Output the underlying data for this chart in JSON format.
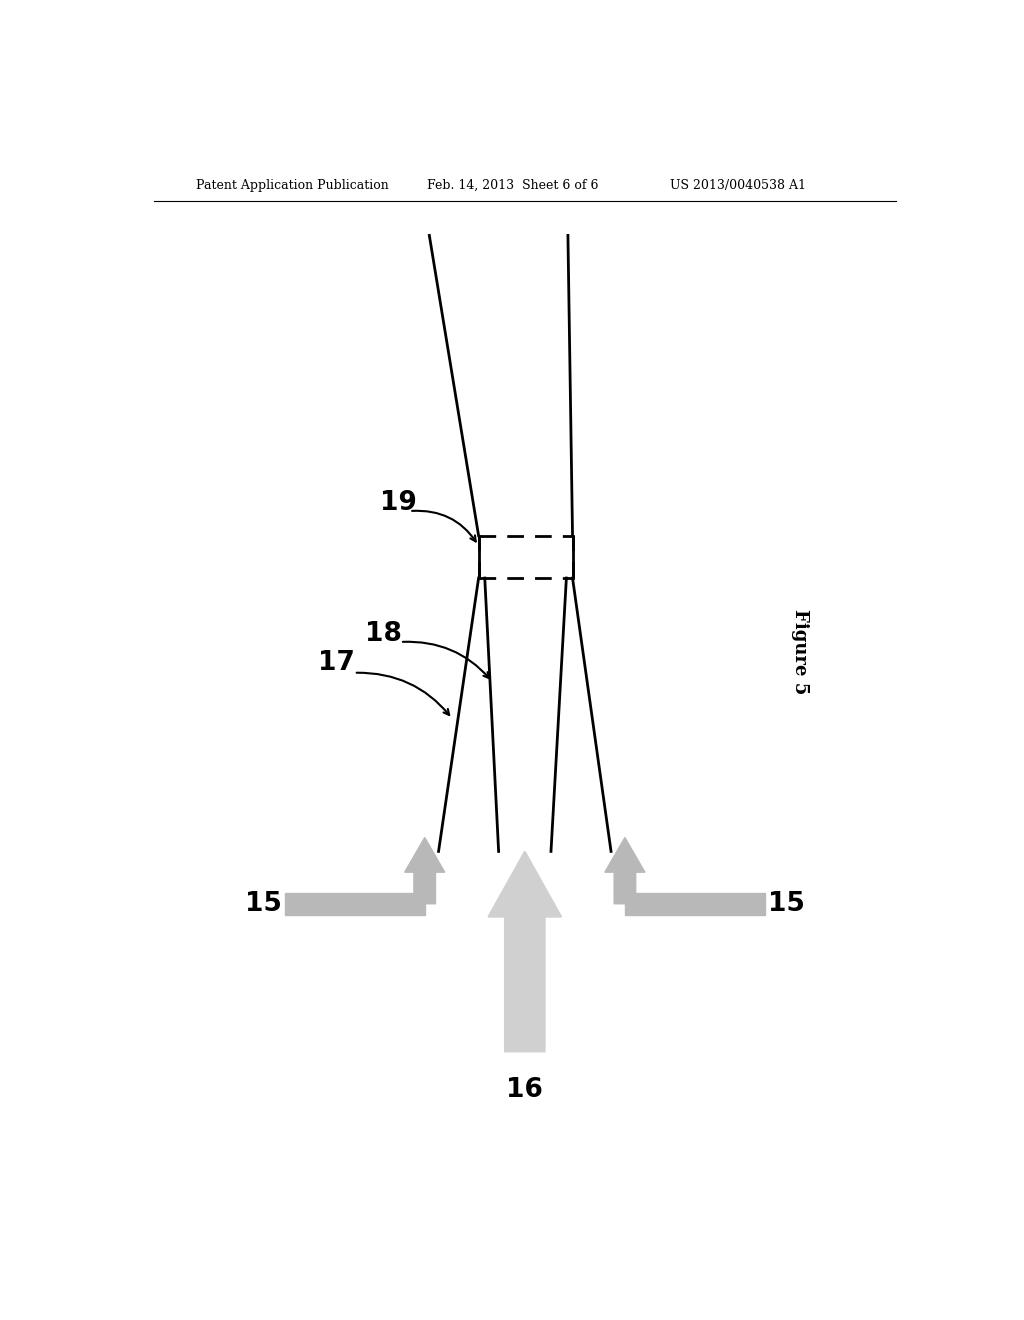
{
  "bg_color": "#ffffff",
  "header_left": "Patent Application Publication",
  "header_mid": "Feb. 14, 2013  Sheet 6 of 6",
  "header_right": "US 2013/0040538 A1",
  "figure_label": "Figure 5",
  "label_15_left": "15",
  "label_15_right": "15",
  "label_16": "16",
  "label_17": "17",
  "label_18": "18",
  "label_19": "19",
  "arrow_gray": "#b8b8b8",
  "arrow_center_gray": "#d0d0d0",
  "arrow_center_edge": "#999999"
}
